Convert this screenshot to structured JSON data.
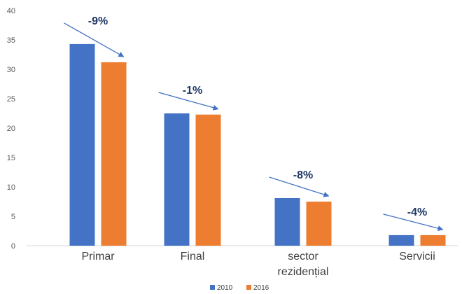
{
  "chart_data": {
    "type": "bar",
    "categories": [
      "Primar",
      "Final",
      "sector rezidențial",
      "Servicii"
    ],
    "category_lines": [
      [
        "Primar"
      ],
      [
        "Final"
      ],
      [
        "sector",
        "rezidențial"
      ],
      [
        "Servicii"
      ]
    ],
    "series": [
      {
        "name": "2010",
        "values": [
          34.3,
          22.5,
          8.1,
          1.8
        ],
        "color": "#4472c4"
      },
      {
        "name": "2016",
        "values": [
          31.2,
          22.3,
          7.5,
          1.8
        ],
        "color": "#ed7d31"
      }
    ],
    "ylim": [
      0,
      40
    ],
    "yticks": [
      0,
      5,
      10,
      15,
      20,
      25,
      30,
      35,
      40
    ],
    "annotations": [
      "-9%",
      "-1%",
      "-8%",
      "-4%"
    ],
    "annotation_color": "#4472c4",
    "grid": false,
    "legend_position": "bottom"
  }
}
